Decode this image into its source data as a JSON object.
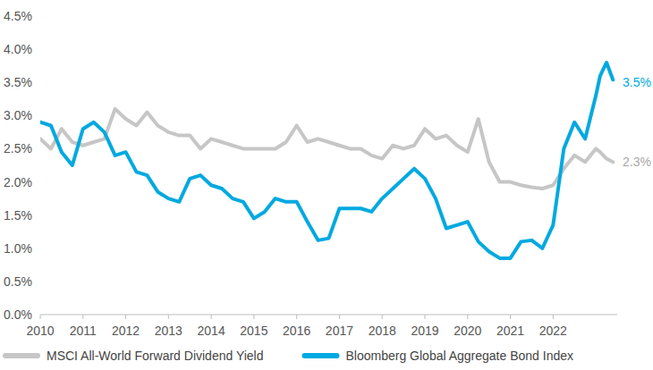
{
  "chart_data": {
    "type": "line",
    "x": [
      2010,
      2010.25,
      2010.5,
      2010.75,
      2011,
      2011.25,
      2011.5,
      2011.75,
      2012,
      2012.25,
      2012.5,
      2012.75,
      2013,
      2013.25,
      2013.5,
      2013.75,
      2014,
      2014.25,
      2014.5,
      2014.75,
      2015,
      2015.25,
      2015.5,
      2015.75,
      2016,
      2016.25,
      2016.5,
      2016.75,
      2017,
      2017.25,
      2017.5,
      2017.75,
      2018,
      2018.25,
      2018.5,
      2018.75,
      2019,
      2019.25,
      2019.5,
      2019.75,
      2020,
      2020.25,
      2020.5,
      2020.75,
      2021,
      2021.25,
      2021.5,
      2021.75,
      2022,
      2022.25,
      2022.5,
      2022.75,
      2023,
      2023.1,
      2023.25,
      2023.4
    ],
    "series": [
      {
        "name": "MSCI All-World Forward Dividend Yield",
        "color": "#c6c6c6",
        "values": [
          2.65,
          2.5,
          2.8,
          2.6,
          2.55,
          2.6,
          2.65,
          3.1,
          2.95,
          2.85,
          3.05,
          2.85,
          2.75,
          2.7,
          2.7,
          2.5,
          2.65,
          2.6,
          2.55,
          2.5,
          2.5,
          2.5,
          2.5,
          2.6,
          2.85,
          2.6,
          2.65,
          2.6,
          2.55,
          2.5,
          2.5,
          2.4,
          2.35,
          2.55,
          2.5,
          2.55,
          2.8,
          2.65,
          2.7,
          2.55,
          2.45,
          2.95,
          2.3,
          2.0,
          2.0,
          1.95,
          1.92,
          1.9,
          1.95,
          2.2,
          2.4,
          2.3,
          2.5,
          2.45,
          2.35,
          2.3
        ]
      },
      {
        "name": "Bloomberg Global Aggregate Bond Index",
        "color": "#00a9e0",
        "values": [
          2.9,
          2.85,
          2.45,
          2.25,
          2.8,
          2.9,
          2.75,
          2.4,
          2.45,
          2.15,
          2.1,
          1.85,
          1.75,
          1.7,
          2.05,
          2.1,
          1.95,
          1.9,
          1.75,
          1.7,
          1.45,
          1.55,
          1.75,
          1.7,
          1.7,
          1.4,
          1.12,
          1.15,
          1.6,
          1.6,
          1.6,
          1.55,
          1.75,
          1.9,
          2.05,
          2.2,
          2.05,
          1.75,
          1.3,
          1.35,
          1.4,
          1.1,
          0.95,
          0.85,
          0.85,
          1.1,
          1.12,
          1.0,
          1.35,
          2.5,
          2.9,
          2.65,
          3.3,
          3.6,
          3.8,
          3.54
        ]
      }
    ],
    "xlim": [
      2010,
      2023.5
    ],
    "xticks": [
      2010,
      2011,
      2012,
      2013,
      2014,
      2015,
      2016,
      2017,
      2018,
      2019,
      2020,
      2021,
      2022
    ],
    "ylim": [
      0,
      4.5
    ],
    "yticks": [
      {
        "value": 0,
        "label": "0.0%"
      },
      {
        "value": 0.5,
        "label": "0.5%"
      },
      {
        "value": 1,
        "label": "1.0%"
      },
      {
        "value": 1.5,
        "label": "1.5%"
      },
      {
        "value": 2,
        "label": "2.0%"
      },
      {
        "value": 2.5,
        "label": "2.5%"
      },
      {
        "value": 3,
        "label": "3.0%"
      },
      {
        "value": 3.5,
        "label": "3.5%"
      },
      {
        "value": 4,
        "label": "4.0%"
      },
      {
        "value": 4.5,
        "label": "4.5%"
      }
    ],
    "annotations": [
      {
        "text": "3.5%",
        "value": 3.5,
        "color": "#00a9e0"
      },
      {
        "text": "2.3%",
        "value": 2.3,
        "color": "#a8a8a8"
      }
    ],
    "grid": false,
    "legend": "bottom"
  }
}
